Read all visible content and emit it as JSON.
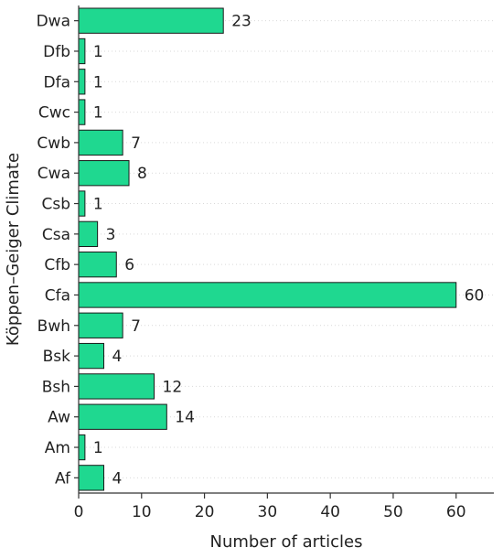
{
  "chart_data": {
    "type": "bar",
    "orientation": "horizontal",
    "categories": [
      "Dwa",
      "Dfb",
      "Dfa",
      "Cwc",
      "Cwb",
      "Cwa",
      "Csb",
      "Csa",
      "Cfb",
      "Cfa",
      "Bwh",
      "Bsk",
      "Bsh",
      "Aw",
      "Am",
      "Af"
    ],
    "values": [
      23,
      1,
      1,
      1,
      7,
      8,
      1,
      3,
      6,
      60,
      7,
      4,
      12,
      14,
      1,
      4
    ],
    "xlabel": "Number of articles",
    "ylabel": "Köppen–Geiger Climate",
    "xlim": [
      0,
      66
    ],
    "xticks": [
      0,
      10,
      20,
      30,
      40,
      50,
      60
    ],
    "grid": "horizontal dotted",
    "bar_color": "#1fd890",
    "edge_color": "#1a1a1a"
  }
}
